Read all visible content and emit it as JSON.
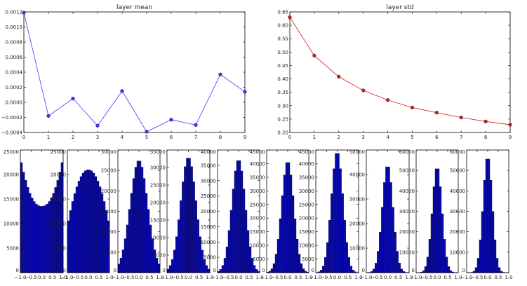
{
  "chart_data": [
    {
      "type": "line",
      "title": "layer mean",
      "x": [
        0,
        1,
        2,
        3,
        4,
        5,
        6,
        7,
        8,
        9
      ],
      "series": [
        {
          "values": [
            0.00119,
            -0.00018,
            5e-05,
            -0.00031,
            0.00015,
            -0.00039,
            -0.00023,
            -0.0003,
            0.00037,
            0.00014
          ]
        }
      ],
      "xlim": [
        0,
        9
      ],
      "ylim": [
        -0.0004,
        0.0012
      ],
      "xticks": [
        "0",
        "1",
        "2",
        "3",
        "4",
        "5",
        "6",
        "7",
        "8",
        "9"
      ],
      "yticks": [
        "−0.0004",
        "−0.0002",
        "0.0000",
        "0.0002",
        "0.0004",
        "0.0006",
        "0.0008",
        "0.0010",
        "0.0012"
      ],
      "color": "#3a3aff",
      "grid": false
    },
    {
      "type": "line",
      "title": "layer std",
      "x": [
        0,
        1,
        2,
        3,
        4,
        5,
        6,
        7,
        8,
        9
      ],
      "series": [
        {
          "values": [
            0.63,
            0.487,
            0.408,
            0.357,
            0.321,
            0.293,
            0.274,
            0.256,
            0.241,
            0.229
          ]
        }
      ],
      "xlim": [
        0,
        9
      ],
      "ylim": [
        0.2,
        0.65
      ],
      "xticks": [
        "0",
        "1",
        "2",
        "3",
        "4",
        "5",
        "6",
        "7",
        "8",
        "9"
      ],
      "yticks": [
        "0.20",
        "0.25",
        "0.30",
        "0.35",
        "0.40",
        "0.45",
        "0.50",
        "0.55",
        "0.60",
        "0.65"
      ],
      "color": "#cc2222",
      "grid": false
    },
    {
      "type": "bar",
      "kind": "histogram",
      "xlim": [
        -1,
        1
      ],
      "ylim": [
        0,
        25000
      ],
      "yticks": [
        "0",
        "5000",
        "10000",
        "15000",
        "20000",
        "25000"
      ],
      "xticks": [
        "−1.0",
        "−0.5",
        "0.0",
        "0.5",
        "1.0"
      ],
      "bins": 20,
      "shape": "u",
      "peak": 23500,
      "min": 13500,
      "color": "#0a0aaa"
    },
    {
      "type": "bar",
      "kind": "histogram",
      "xlim": [
        -1,
        1
      ],
      "ylim": [
        0,
        25000
      ],
      "yticks": [
        "0",
        "5000",
        "10000",
        "15000",
        "20000",
        "25000"
      ],
      "xticks": [
        "−1.0",
        "−0.5",
        "0.0",
        "0.5",
        "1.0"
      ],
      "bins": 20,
      "shape": "dome",
      "peak": 21000,
      "color": "#0a0aaa"
    },
    {
      "type": "bar",
      "kind": "histogram",
      "xlim": [
        -1,
        1
      ],
      "ylim": [
        0,
        30000
      ],
      "yticks": [
        "0",
        "5000",
        "10000",
        "15000",
        "20000",
        "25000",
        "30000"
      ],
      "xticks": [
        "−1.0",
        "−0.5",
        "0.0",
        "0.5",
        "1.0"
      ],
      "bins": 20,
      "shape": "gauss",
      "peak": 27500,
      "sigma": 0.42,
      "color": "#0a0aaa"
    },
    {
      "type": "bar",
      "kind": "histogram",
      "xlim": [
        -1,
        1
      ],
      "ylim": [
        0,
        35000
      ],
      "yticks": [
        "0",
        "5000",
        "10000",
        "15000",
        "20000",
        "25000",
        "30000",
        "35000"
      ],
      "xticks": [
        "−1.0",
        "−0.5",
        "0.0",
        "0.5",
        "1.0"
      ],
      "bins": 20,
      "shape": "gauss",
      "peak": 33000,
      "sigma": 0.36,
      "color": "#0a0aaa"
    },
    {
      "type": "bar",
      "kind": "histogram",
      "xlim": [
        -1,
        1
      ],
      "ylim": [
        0,
        40000
      ],
      "yticks": [
        "0",
        "5000",
        "10000",
        "15000",
        "20000",
        "25000",
        "30000",
        "35000",
        "40000"
      ],
      "xticks": [
        "−1.0",
        "−0.5",
        "0.0",
        "0.5",
        "1.0"
      ],
      "bins": 20,
      "shape": "gauss",
      "peak": 37000,
      "sigma": 0.32,
      "color": "#0a0aaa"
    },
    {
      "type": "bar",
      "kind": "histogram",
      "xlim": [
        -1,
        1
      ],
      "ylim": [
        0,
        45000
      ],
      "yticks": [
        "0",
        "5000",
        "10000",
        "15000",
        "20000",
        "25000",
        "30000",
        "35000",
        "40000",
        "45000"
      ],
      "xticks": [
        "−1.0",
        "−0.5",
        "0.0",
        "0.5",
        "1.0"
      ],
      "bins": 20,
      "shape": "gauss",
      "peak": 41000,
      "sigma": 0.29,
      "color": "#0a0aaa"
    },
    {
      "type": "bar",
      "kind": "histogram",
      "xlim": [
        -1,
        1
      ],
      "ylim": [
        0,
        45000
      ],
      "yticks": [
        "0",
        "5000",
        "10000",
        "15000",
        "20000",
        "25000",
        "30000",
        "35000",
        "40000",
        "45000"
      ],
      "xticks": [
        "−1.0",
        "−0.5",
        "0.0",
        "0.5",
        "1.0"
      ],
      "bins": 20,
      "shape": "gauss",
      "peak": 44500,
      "sigma": 0.27,
      "color": "#0a0aaa"
    },
    {
      "type": "bar",
      "kind": "histogram",
      "xlim": [
        -1,
        1
      ],
      "ylim": [
        0,
        50000
      ],
      "yticks": [
        "0",
        "10000",
        "20000",
        "30000",
        "40000",
        "50000"
      ],
      "xticks": [
        "−1.0",
        "−0.5",
        "0.0",
        "0.5",
        "1.0"
      ],
      "bins": 20,
      "shape": "gauss",
      "peak": 44000,
      "sigma": 0.25,
      "color": "#0a0aaa"
    },
    {
      "type": "bar",
      "kind": "histogram",
      "xlim": [
        -1,
        1
      ],
      "ylim": [
        0,
        60000
      ],
      "yticks": [
        "0",
        "10000",
        "20000",
        "30000",
        "40000",
        "50000",
        "60000"
      ],
      "xticks": [
        "−1.0",
        "−0.5",
        "0.0",
        "0.5",
        "1.0"
      ],
      "bins": 20,
      "shape": "gauss",
      "peak": 52000,
      "sigma": 0.23,
      "color": "#0a0aaa"
    },
    {
      "type": "bar",
      "kind": "histogram",
      "xlim": [
        -1,
        1
      ],
      "ylim": [
        0,
        60000
      ],
      "yticks": [
        "0",
        "10000",
        "20000",
        "30000",
        "40000",
        "50000",
        "60000"
      ],
      "xticks": [
        "−1.0",
        "−0.5",
        "0.0",
        "0.5",
        "1.0"
      ],
      "bins": 20,
      "shape": "gauss",
      "peak": 57000,
      "sigma": 0.22,
      "color": "#0a0aaa"
    }
  ]
}
